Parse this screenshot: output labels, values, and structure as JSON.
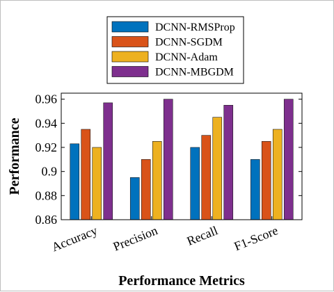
{
  "chart_data": {
    "type": "bar",
    "title": "",
    "xlabel": "Performance Metrics",
    "ylabel": "Performance",
    "categories": [
      "Accuracy",
      "Precision",
      "Recall",
      "F1-Score"
    ],
    "ylim": [
      0.86,
      0.965
    ],
    "yticks": [
      "0.86",
      "0.88",
      "0.9",
      "0.92",
      "0.94",
      "0.96"
    ],
    "grid": false,
    "legend_position": "top",
    "series": [
      {
        "name": "DCNN-RMSProp",
        "color": "#0072BD",
        "values": [
          0.923,
          0.895,
          0.92,
          0.91
        ]
      },
      {
        "name": "DCNN-SGDM",
        "color": "#D95319",
        "values": [
          0.935,
          0.91,
          0.93,
          0.925
        ]
      },
      {
        "name": "DCNN-Adam",
        "color": "#EDB120",
        "values": [
          0.92,
          0.925,
          0.945,
          0.935
        ]
      },
      {
        "name": "DCNN-MBGDM",
        "color": "#7E2F8E",
        "values": [
          0.957,
          0.96,
          0.955,
          0.96
        ]
      }
    ]
  }
}
